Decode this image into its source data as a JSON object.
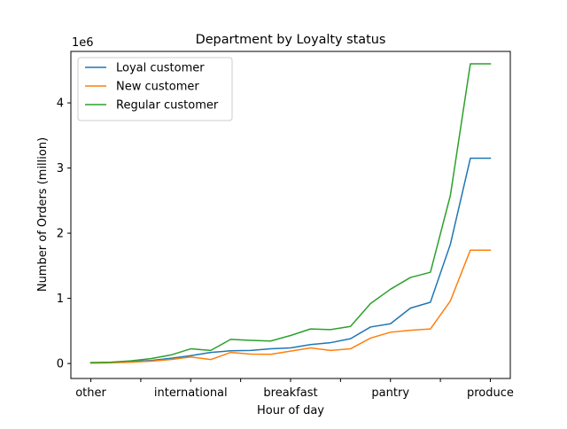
{
  "chart_data": {
    "type": "line",
    "title": "Department by Loyalty status",
    "xlabel": "Hour of day",
    "ylabel": "Number of Orders (million)",
    "y_offset_text": "1e6",
    "x_tick_labels": [
      "other",
      "",
      "international",
      "",
      "breakfast",
      "",
      "pantry",
      "",
      "produce"
    ],
    "x": [
      0,
      1,
      2,
      3,
      4,
      5,
      6,
      7,
      8,
      9,
      10,
      11,
      12,
      13,
      14,
      15,
      16,
      17,
      18,
      19,
      20
    ],
    "x_tick_positions": [
      0,
      2.5,
      5,
      7.5,
      10,
      12.5,
      15,
      17.5,
      20
    ],
    "xlim": [
      -1,
      21
    ],
    "ylim": [
      -230000,
      4790000
    ],
    "y_ticks": [
      0,
      1000000,
      2000000,
      3000000,
      4000000
    ],
    "y_tick_labels": [
      "0",
      "1",
      "2",
      "3",
      "4"
    ],
    "grid": false,
    "legend_position": "top-left",
    "series": [
      {
        "name": "Loyal customer",
        "color": "#1f77b4",
        "values": [
          10000,
          15000,
          30000,
          45000,
          80000,
          120000,
          170000,
          195000,
          200000,
          225000,
          240000,
          290000,
          320000,
          380000,
          560000,
          610000,
          850000,
          940000,
          1830000,
          3150000,
          3150000
        ]
      },
      {
        "name": "New customer",
        "color": "#ff7f0e",
        "values": [
          5000,
          10000,
          20000,
          35000,
          60000,
          100000,
          60000,
          170000,
          145000,
          140000,
          190000,
          240000,
          200000,
          225000,
          390000,
          480000,
          510000,
          530000,
          960000,
          1740000,
          1740000
        ]
      },
      {
        "name": "Regular customer",
        "color": "#2ca02c",
        "values": [
          15000,
          20000,
          40000,
          75000,
          130000,
          225000,
          200000,
          370000,
          355000,
          345000,
          430000,
          530000,
          520000,
          570000,
          920000,
          1140000,
          1320000,
          1400000,
          2580000,
          4600000,
          4600000
        ]
      }
    ]
  }
}
